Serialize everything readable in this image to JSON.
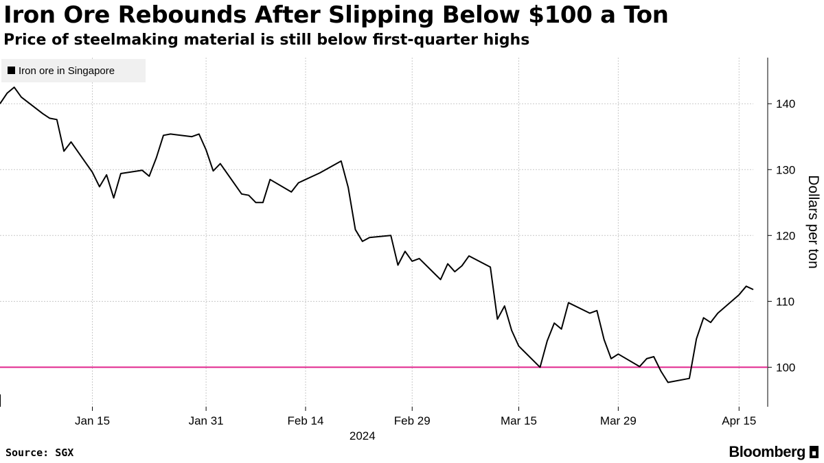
{
  "header": {
    "title": "Iron Ore Rebounds After Slipping Below $100 a Ton",
    "subtitle": "Price of steelmaking material is still below first-quarter highs"
  },
  "footer": {
    "source": "Source: SGX",
    "brand": "Bloomberg"
  },
  "colors": {
    "series": "#000000",
    "reference_line": "#e0238c",
    "grid": "#c8c8c8",
    "legend_bg": "#f0f0f0"
  },
  "chart_data": {
    "type": "line",
    "title": "Iron Ore Rebounds After Slipping Below $100 a Ton",
    "subtitle": "Price of steelmaking material is still below first-quarter highs",
    "ylabel": "Dollars per ton",
    "xlabel": "",
    "year_label": "2024",
    "ylim": [
      94,
      147
    ],
    "xlim": [
      "2024-01-02",
      "2024-04-17"
    ],
    "y_ticks": [
      100,
      110,
      120,
      130,
      140
    ],
    "x_ticks": [
      {
        "date": "2024-01-15",
        "label": "Jan 15"
      },
      {
        "date": "2024-01-31",
        "label": "Jan 31"
      },
      {
        "date": "2024-02-14",
        "label": "Feb 14"
      },
      {
        "date": "2024-02-29",
        "label": "Feb 29"
      },
      {
        "date": "2024-03-15",
        "label": "Mar 15"
      },
      {
        "date": "2024-03-29",
        "label": "Mar 29"
      },
      {
        "date": "2024-04-15",
        "label": "Apr 15"
      }
    ],
    "grid": true,
    "legend_position": "top-left",
    "reference_line": {
      "y": 100,
      "color": "#e0238c"
    },
    "series": [
      {
        "name": "Iron ore in Singapore",
        "color": "#000000",
        "points": [
          [
            "2024-01-02",
            140.0
          ],
          [
            "2024-01-03",
            141.6
          ],
          [
            "2024-01-04",
            142.5
          ],
          [
            "2024-01-05",
            141.0
          ],
          [
            "2024-01-08",
            138.5
          ],
          [
            "2024-01-09",
            137.8
          ],
          [
            "2024-01-10",
            137.6
          ],
          [
            "2024-01-11",
            132.8
          ],
          [
            "2024-01-12",
            134.2
          ],
          [
            "2024-01-15",
            129.6
          ],
          [
            "2024-01-16",
            127.4
          ],
          [
            "2024-01-17",
            129.2
          ],
          [
            "2024-01-18",
            125.7
          ],
          [
            "2024-01-19",
            129.4
          ],
          [
            "2024-01-22",
            129.9
          ],
          [
            "2024-01-23",
            129.0
          ],
          [
            "2024-01-24",
            131.8
          ],
          [
            "2024-01-25",
            135.2
          ],
          [
            "2024-01-26",
            135.4
          ],
          [
            "2024-01-29",
            135.0
          ],
          [
            "2024-01-30",
            135.4
          ],
          [
            "2024-01-31",
            133.0
          ],
          [
            "2024-02-01",
            129.8
          ],
          [
            "2024-02-02",
            130.9
          ],
          [
            "2024-02-05",
            126.3
          ],
          [
            "2024-02-06",
            126.1
          ],
          [
            "2024-02-07",
            125.0
          ],
          [
            "2024-02-08",
            125.0
          ],
          [
            "2024-02-09",
            128.5
          ],
          [
            "2024-02-12",
            126.6
          ],
          [
            "2024-02-13",
            128.0
          ],
          [
            "2024-02-14",
            128.5
          ],
          [
            "2024-02-15",
            129.0
          ],
          [
            "2024-02-16",
            129.5
          ],
          [
            "2024-02-19",
            131.3
          ],
          [
            "2024-02-20",
            127.3
          ],
          [
            "2024-02-21",
            120.9
          ],
          [
            "2024-02-22",
            119.1
          ],
          [
            "2024-02-23",
            119.7
          ],
          [
            "2024-02-26",
            120.0
          ],
          [
            "2024-02-27",
            115.5
          ],
          [
            "2024-02-28",
            117.6
          ],
          [
            "2024-02-29",
            116.1
          ],
          [
            "2024-03-01",
            116.5
          ],
          [
            "2024-03-04",
            113.3
          ],
          [
            "2024-03-05",
            115.7
          ],
          [
            "2024-03-06",
            114.5
          ],
          [
            "2024-03-07",
            115.4
          ],
          [
            "2024-03-08",
            116.9
          ],
          [
            "2024-03-11",
            115.2
          ],
          [
            "2024-03-12",
            107.3
          ],
          [
            "2024-03-13",
            109.3
          ],
          [
            "2024-03-14",
            105.6
          ],
          [
            "2024-03-15",
            103.2
          ],
          [
            "2024-03-18",
            100.0
          ],
          [
            "2024-03-19",
            104.0
          ],
          [
            "2024-03-20",
            106.7
          ],
          [
            "2024-03-21",
            105.8
          ],
          [
            "2024-03-22",
            109.8
          ],
          [
            "2024-03-25",
            108.2
          ],
          [
            "2024-03-26",
            108.6
          ],
          [
            "2024-03-27",
            104.2
          ],
          [
            "2024-03-28",
            101.3
          ],
          [
            "2024-03-29",
            102.0
          ],
          [
            "2024-04-01",
            100.1
          ],
          [
            "2024-04-02",
            101.3
          ],
          [
            "2024-04-03",
            101.6
          ],
          [
            "2024-04-04",
            99.4
          ],
          [
            "2024-04-05",
            97.7
          ],
          [
            "2024-04-08",
            98.3
          ],
          [
            "2024-04-09",
            104.3
          ],
          [
            "2024-04-10",
            107.5
          ],
          [
            "2024-04-11",
            106.8
          ],
          [
            "2024-04-12",
            108.2
          ],
          [
            "2024-04-15",
            111.0
          ],
          [
            "2024-04-16",
            112.3
          ],
          [
            "2024-04-17",
            111.8
          ]
        ]
      }
    ]
  }
}
